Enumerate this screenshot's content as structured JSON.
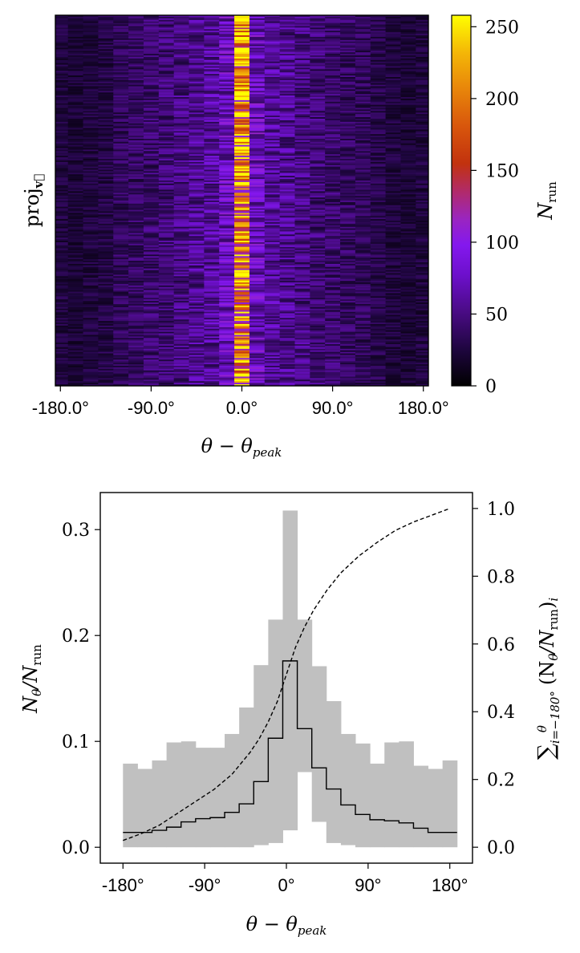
{
  "chart_data": [
    {
      "type": "heatmap",
      "title": "",
      "xlabel": "θ − θ",
      "xlabel_sub": "peak",
      "ylabel": "proj",
      "ylabel_sub": "v⃗",
      "xlim": [
        -185,
        185
      ],
      "x_ticks": [
        -180,
        -90,
        0,
        90,
        180
      ],
      "x_tick_labels": [
        "-180.0°",
        "-90.0°",
        "0.0°",
        "90.0°",
        "180.0°"
      ],
      "bins": [
        -180,
        -165,
        -150,
        -135,
        -120,
        -105,
        -90,
        -75,
        -60,
        -45,
        -30,
        -15,
        0,
        15,
        30,
        45,
        60,
        75,
        90,
        105,
        120,
        135,
        150,
        165,
        180
      ],
      "mean_counts": [
        25,
        22,
        25,
        28,
        35,
        38,
        42,
        45,
        50,
        55,
        60,
        75,
        195,
        75,
        60,
        55,
        50,
        45,
        42,
        38,
        35,
        30,
        25,
        22,
        25
      ],
      "row_count": 240,
      "colorbar": {
        "label": "N",
        "label_sub": "run",
        "colormap": "gnuplot",
        "range": [
          0,
          258
        ],
        "ticks": [
          0,
          50,
          100,
          150,
          200,
          250
        ],
        "tick_labels": [
          "0",
          "50",
          "100",
          "150",
          "200",
          "250"
        ]
      }
    },
    {
      "type": "bar",
      "title": "",
      "xlabel": "θ − θ",
      "xlabel_sub": "peak",
      "ylabel": "N",
      "ylabel_theta": "θ",
      "ylabel_den": "/N",
      "ylabel_den_sub": "run",
      "xlim": [
        -205,
        205
      ],
      "ylim": [
        -0.015,
        0.335
      ],
      "x_ticks": [
        -180,
        -90,
        0,
        90,
        180
      ],
      "x_tick_labels": [
        "-180°",
        "-90°",
        "0°",
        "90°",
        "180°"
      ],
      "y_ticks": [
        0.0,
        0.1,
        0.2,
        0.3
      ],
      "y_tick_labels": [
        "0.0",
        "0.1",
        "0.2",
        "0.3"
      ],
      "bin_edges": [
        -180,
        -164,
        -148,
        -132,
        -116,
        -100,
        -84,
        -68,
        -52,
        -36,
        -20,
        -4,
        12,
        28,
        44,
        60,
        76,
        92,
        108,
        124,
        140,
        156,
        172,
        188
      ],
      "series": [
        {
          "name": "range_upper",
          "color": "#c0c0c0",
          "values": [
            0.079,
            0.074,
            0.082,
            0.099,
            0.1,
            0.094,
            0.094,
            0.107,
            0.132,
            0.172,
            0.215,
            0.318,
            0.215,
            0.171,
            0.138,
            0.107,
            0.098,
            0.079,
            0.099,
            0.1,
            0.077,
            0.074,
            0.082
          ]
        },
        {
          "name": "range_lower",
          "color": "#c0c0c0",
          "values": [
            0.0,
            0.0,
            0.0,
            0.0,
            0.0,
            0.0,
            0.0,
            0.0,
            0.0,
            0.002,
            0.004,
            0.016,
            0.071,
            0.024,
            0.004,
            0.002,
            0.0,
            0.0,
            0.0,
            0.0,
            0.0,
            0.0,
            0.0
          ]
        },
        {
          "name": "mean",
          "color": "#000000",
          "values": [
            0.014,
            0.014,
            0.016,
            0.019,
            0.024,
            0.027,
            0.028,
            0.033,
            0.041,
            0.062,
            0.103,
            0.176,
            0.112,
            0.075,
            0.055,
            0.04,
            0.031,
            0.026,
            0.025,
            0.023,
            0.018,
            0.014,
            0.014
          ]
        }
      ],
      "secondary_axis": {
        "label": "cumulative sum of N/N (run) from −180° to θ",
        "label_sum": "∑",
        "label_sub": "i=−180°",
        "label_sup": "θ",
        "label_body": "(N",
        "label_body_sub1": "θ",
        "label_body_mid": "/N",
        "label_body_sub2": "run",
        "label_body_end": ")",
        "label_body_sub3": "i",
        "ylim": [
          -0.047,
          1.047
        ],
        "y_ticks": [
          0.0,
          0.2,
          0.4,
          0.6,
          0.8,
          1.0
        ],
        "y_tick_labels": [
          "0.0",
          "0.2",
          "0.4",
          "0.6",
          "0.8",
          "1.0"
        ],
        "series": [
          {
            "name": "cumulative",
            "style": "dashed",
            "x": [
              -180,
              -160,
              -140,
              -120,
              -100,
              -80,
              -60,
              -40,
              -30,
              -20,
              -10,
              0,
              10,
              20,
              30,
              45,
              60,
              80,
              100,
              120,
              140,
              160,
              180
            ],
            "values": [
              0.02,
              0.04,
              0.065,
              0.1,
              0.135,
              0.17,
              0.215,
              0.28,
              0.32,
              0.37,
              0.43,
              0.51,
              0.59,
              0.65,
              0.7,
              0.76,
              0.81,
              0.86,
              0.9,
              0.935,
              0.96,
              0.98,
              1.0
            ]
          }
        ]
      }
    }
  ]
}
